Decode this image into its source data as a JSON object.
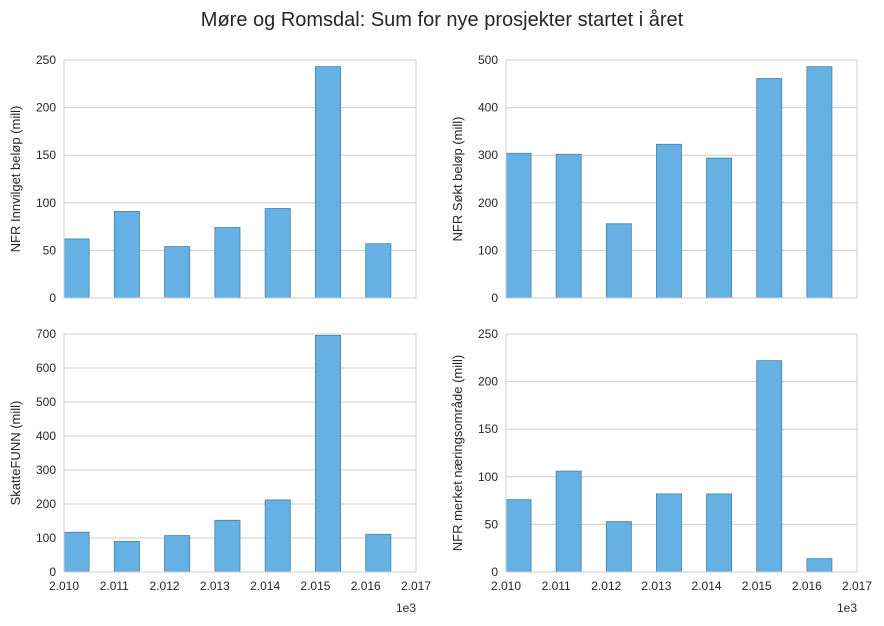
{
  "title": "Møre og Romsdal: Sum for nye prosjekter startet i året",
  "colors": {
    "bar": "#5DADE2",
    "grid": "#cccccc",
    "text": "#262626"
  },
  "chart_data": [
    {
      "type": "bar",
      "ylabel": "NFR Innvilget beløp (mill)",
      "x": [
        2010,
        2011,
        2012,
        2013,
        2014,
        2015,
        2016
      ],
      "values": [
        62,
        91,
        54,
        74,
        94,
        243,
        57
      ],
      "yticks": [
        "0",
        "50",
        "100",
        "150",
        "200",
        "250"
      ],
      "ylim": [
        0,
        250
      ],
      "xlim": [
        2010,
        2017
      ],
      "xticks": [],
      "offset_label": "",
      "grid": true
    },
    {
      "type": "bar",
      "ylabel": "NFR Søkt beløp (mill)",
      "x": [
        2010,
        2011,
        2012,
        2013,
        2014,
        2015,
        2016
      ],
      "values": [
        304,
        302,
        156,
        323,
        294,
        461,
        486
      ],
      "yticks": [
        "0",
        "100",
        "200",
        "300",
        "400",
        "500"
      ],
      "ylim": [
        0,
        500
      ],
      "xlim": [
        2010,
        2017
      ],
      "xticks": [],
      "offset_label": "",
      "grid": true
    },
    {
      "type": "bar",
      "ylabel": "SkatteFUNN (mill)",
      "x": [
        2010,
        2011,
        2012,
        2013,
        2014,
        2015,
        2016
      ],
      "values": [
        117,
        90,
        107,
        152,
        212,
        696,
        111
      ],
      "yticks": [
        "0",
        "100",
        "200",
        "300",
        "400",
        "500",
        "600",
        "700"
      ],
      "ylim": [
        0,
        700
      ],
      "xlim": [
        2010,
        2017
      ],
      "xticks": [
        "2.010",
        "2.011",
        "2.012",
        "2.013",
        "2.014",
        "2.015",
        "2.016",
        "2.017"
      ],
      "offset_label": "1e3",
      "grid": true
    },
    {
      "type": "bar",
      "ylabel": "NFR merket næringsområde (mill)",
      "x": [
        2010,
        2011,
        2012,
        2013,
        2014,
        2015,
        2016
      ],
      "values": [
        76,
        106,
        53,
        82,
        82,
        222,
        14
      ],
      "yticks": [
        "0",
        "50",
        "100",
        "150",
        "200",
        "250"
      ],
      "ylim": [
        0,
        250
      ],
      "xlim": [
        2010,
        2017
      ],
      "xticks": [
        "2.010",
        "2.011",
        "2.012",
        "2.013",
        "2.014",
        "2.015",
        "2.016",
        "2.017"
      ],
      "offset_label": "1e3",
      "grid": true
    }
  ]
}
